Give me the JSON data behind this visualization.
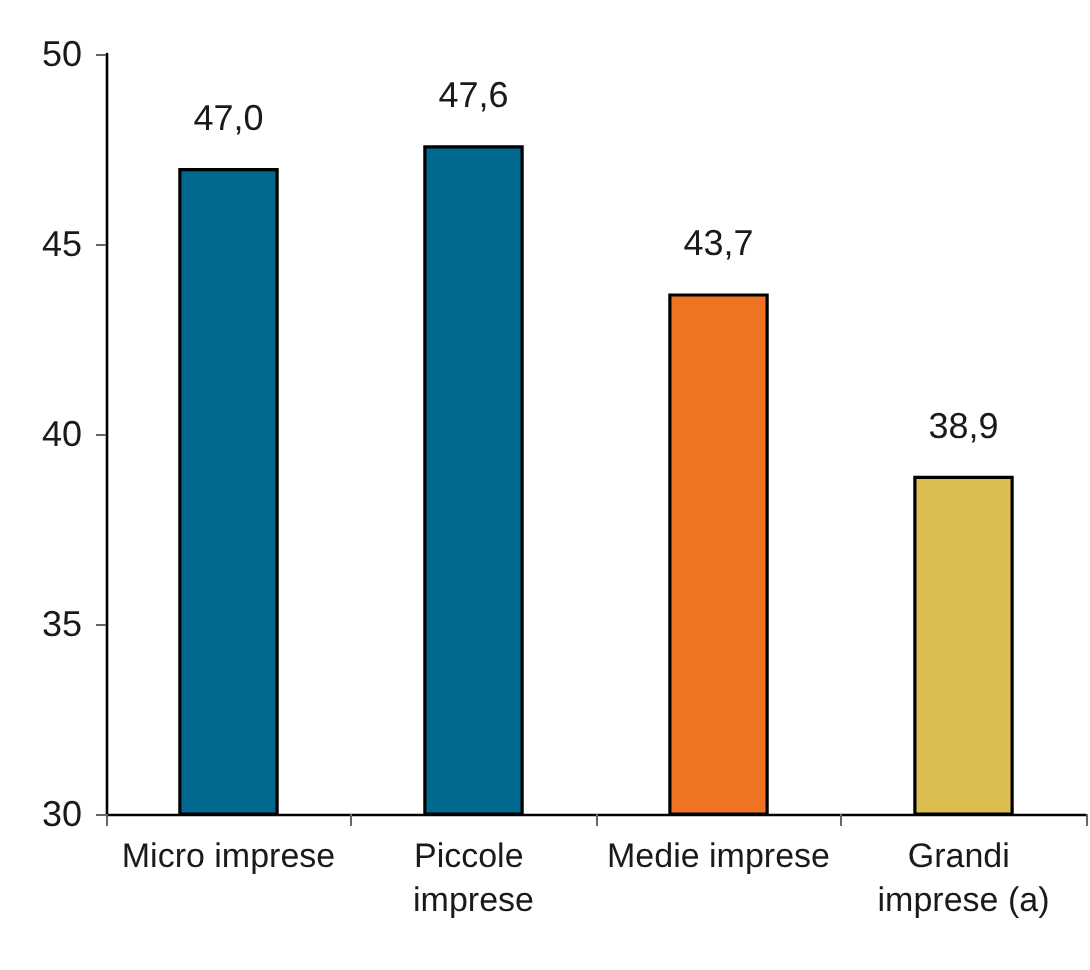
{
  "chart_data": {
    "type": "bar",
    "categories": [
      "Micro imprese",
      "Piccole imprese",
      "Medie imprese",
      "Grandi imprese (a)"
    ],
    "values": [
      47.0,
      47.6,
      43.7,
      38.9
    ],
    "value_labels": [
      "47,0",
      "47,6",
      "43,7",
      "38,9"
    ],
    "colors": [
      "#006990",
      "#006990",
      "#ef7323",
      "#dbbd52"
    ],
    "ylim": [
      30,
      50
    ],
    "yticks": [
      30,
      35,
      40,
      45,
      50
    ],
    "grid": false
  }
}
